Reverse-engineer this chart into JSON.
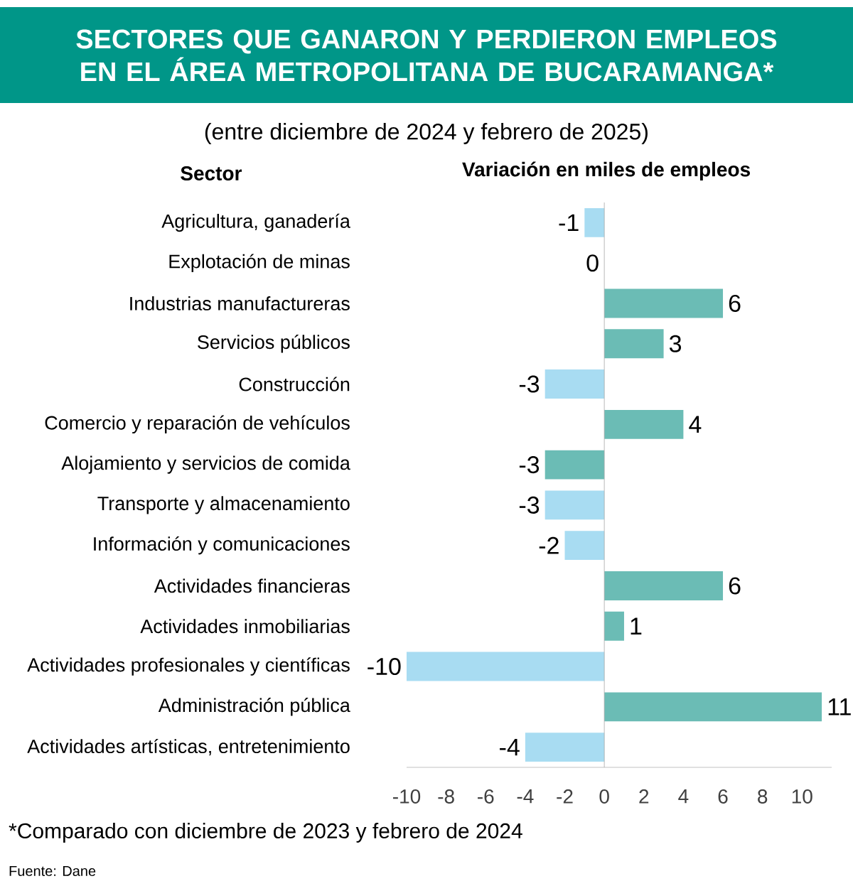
{
  "chart_data": {
    "type": "bar",
    "orientation": "horizontal",
    "title": "SECTORES QUE GANARON Y PERDIERON EMPLEOS EN EL ÁREA METROPOLITANA DE BUCARAMANGA*",
    "subtitle": "(entre diciembre de 2024 y febrero de 2025)",
    "ylabel": "Sector",
    "xlabel": "Variación en miles de empleos",
    "categories": [
      "Agricultura, ganadería",
      "Explotación de minas",
      "Industrias manufactureras",
      "Servicios públicos",
      "Construcción",
      "Comercio y reparación de vehículos",
      "Alojamiento y servicios de comida",
      "Transporte y almacenamiento",
      "Información y comunicaciones",
      "Actividades financieras",
      "Actividades inmobiliarias",
      "Actividades profesionales y científicas",
      "Administración pública",
      "Actividades artísticas, entretenimiento"
    ],
    "values": [
      -1,
      0,
      6,
      3,
      -3,
      4,
      -3,
      -3,
      -2,
      6,
      1,
      -10,
      11,
      -4
    ],
    "colors": [
      "#a8dcf2",
      "#a8dcf2",
      "#6bbcb5",
      "#6bbcb5",
      "#a8dcf2",
      "#6bbcb5",
      "#6bbcb5",
      "#a8dcf2",
      "#a8dcf2",
      "#6bbcb5",
      "#6bbcb5",
      "#a8dcf2",
      "#6bbcb5",
      "#a8dcf2"
    ],
    "data_labels": true,
    "xlim": [
      -10,
      11.5
    ],
    "xticks": [
      -10,
      -8,
      -6,
      -4,
      -2,
      0,
      2,
      4,
      6,
      8,
      10
    ],
    "annotations": [
      "*Comparado con diciembre de 2023 y febrero de 2024",
      "Fuente: Dane"
    ]
  }
}
